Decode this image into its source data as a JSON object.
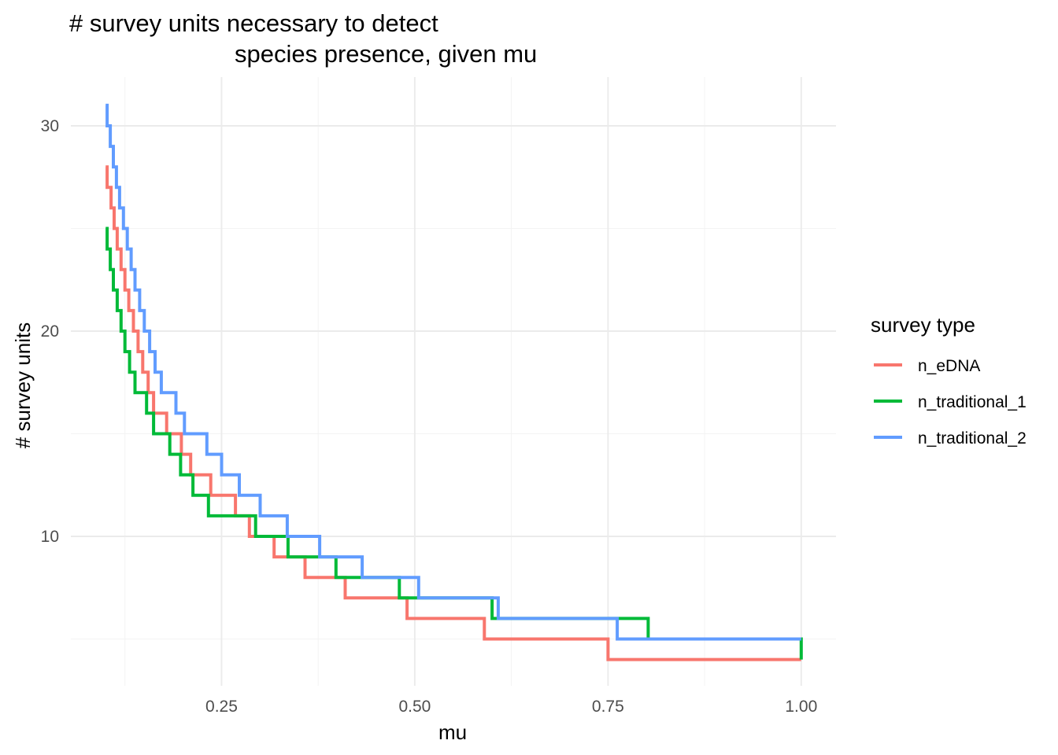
{
  "chart_data": {
    "type": "line",
    "step": true,
    "title_line1": "# survey units necessary to detect",
    "title_line2": "species presence, given mu",
    "xlabel": "mu",
    "ylabel": "# survey units",
    "xlim": [
      0.1,
      1.0
    ],
    "ylim": [
      3,
      32
    ],
    "x_ticks": [
      0.25,
      0.5,
      0.75,
      1.0
    ],
    "x_tick_labels": [
      "0.25",
      "0.50",
      "0.75",
      "1.00"
    ],
    "y_ticks": [
      10,
      20,
      30
    ],
    "y_tick_labels": [
      "10",
      "20",
      "30"
    ],
    "grid": true,
    "legend_title": "survey type",
    "legend_position": "right",
    "series": [
      {
        "name": "n_eDNA",
        "color": "#f8766d",
        "x": [
          0.1,
          0.102,
          0.107,
          0.111,
          0.115,
          0.12,
          0.125,
          0.13,
          0.136,
          0.142,
          0.148,
          0.155,
          0.162,
          0.17,
          0.179,
          0.188,
          0.198,
          0.21,
          0.222,
          0.236,
          0.25,
          0.268,
          0.286,
          0.318,
          0.358,
          0.41,
          0.49,
          0.59,
          0.75,
          1.0
        ],
        "y": [
          28,
          27,
          26,
          25,
          24,
          23,
          22,
          21,
          20,
          19,
          18,
          17,
          16,
          16,
          15,
          15,
          14,
          13,
          13,
          12,
          12,
          11,
          10,
          9,
          8,
          7,
          6,
          5,
          4,
          4
        ]
      },
      {
        "name": "n_traditional_1",
        "color": "#00ba38",
        "x": [
          0.1,
          0.102,
          0.106,
          0.11,
          0.115,
          0.12,
          0.125,
          0.131,
          0.138,
          0.145,
          0.153,
          0.162,
          0.172,
          0.183,
          0.197,
          0.213,
          0.233,
          0.256,
          0.294,
          0.336,
          0.398,
          0.48,
          0.6,
          0.802,
          1.0
        ],
        "y": [
          25,
          24,
          23,
          22,
          21,
          20,
          19,
          18,
          17,
          17,
          16,
          15,
          15,
          14,
          13,
          12,
          11,
          11,
          10,
          9,
          8,
          7,
          6,
          5,
          4
        ]
      },
      {
        "name": "n_traditional_2",
        "color": "#619cff",
        "x": [
          0.1,
          0.102,
          0.106,
          0.11,
          0.114,
          0.118,
          0.123,
          0.128,
          0.133,
          0.138,
          0.144,
          0.15,
          0.157,
          0.164,
          0.172,
          0.181,
          0.191,
          0.202,
          0.216,
          0.231,
          0.25,
          0.273,
          0.3,
          0.335,
          0.377,
          0.432,
          0.505,
          0.608,
          0.762,
          1.0
        ],
        "y": [
          31,
          30,
          29,
          28,
          27,
          26,
          25,
          24,
          23,
          22,
          21,
          20,
          19,
          18,
          17,
          17,
          16,
          15,
          15,
          14,
          13,
          12,
          11,
          10,
          9,
          8,
          7,
          6,
          5,
          5
        ]
      }
    ]
  }
}
